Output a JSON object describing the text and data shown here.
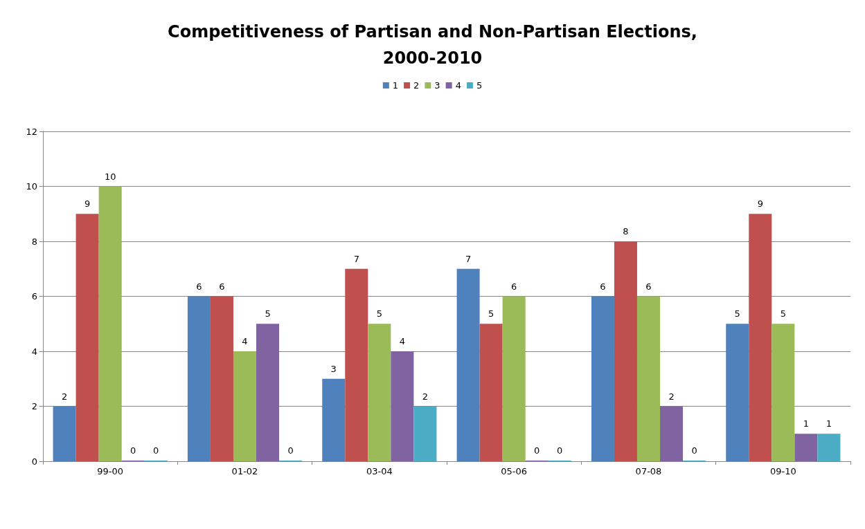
{
  "chart_data": {
    "type": "bar",
    "title": "Competitiveness of Partisan and Non-Partisan Elections,\n2000-2010",
    "categories": [
      "99-00",
      "01-02",
      "03-04",
      "05-06",
      "07-08",
      "09-10"
    ],
    "series": [
      {
        "name": "1",
        "color": "#4f81bd",
        "values": [
          2,
          6,
          3,
          7,
          6,
          5
        ]
      },
      {
        "name": "2",
        "color": "#c0504d",
        "values": [
          9,
          6,
          7,
          5,
          8,
          9
        ]
      },
      {
        "name": "3",
        "color": "#9bbb59",
        "values": [
          10,
          4,
          5,
          6,
          6,
          5
        ]
      },
      {
        "name": "4",
        "color": "#8064a2",
        "values": [
          0,
          5,
          4,
          0,
          2,
          1
        ]
      },
      {
        "name": "5",
        "color": "#4bacc6",
        "values": [
          0,
          0,
          2,
          0,
          0,
          1
        ]
      }
    ],
    "ylim": [
      0,
      12
    ],
    "yticks": [
      0,
      2,
      4,
      6,
      8,
      10,
      12
    ],
    "grid": "y",
    "legend": "top",
    "data_labels": true
  }
}
